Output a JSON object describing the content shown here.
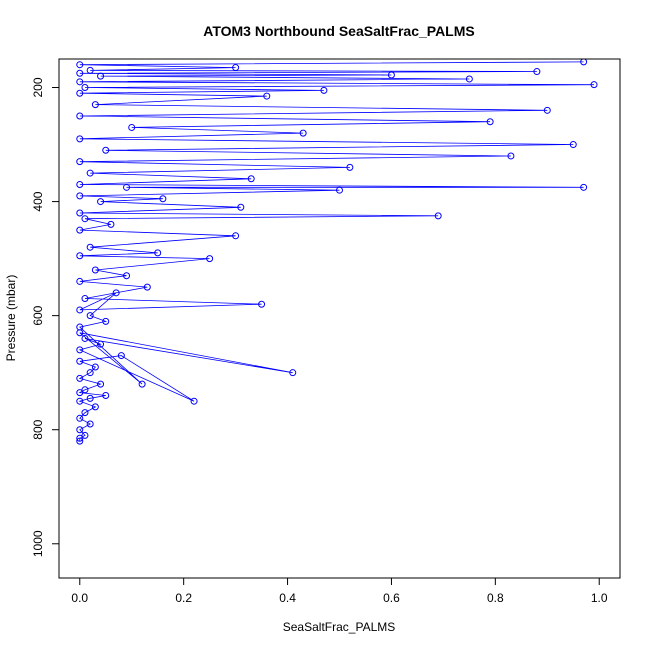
{
  "chart_data": {
    "type": "scatter",
    "title": "ATOM3 Northbound SeaSaltFrac_PALMS",
    "xlabel": "SeaSaltFrac_PALMS",
    "ylabel": "Pressure (mbar)",
    "xlim": [
      -0.04,
      1.04
    ],
    "ylim": [
      1060,
      150
    ],
    "y_reversed": true,
    "x_ticks": [
      0.0,
      0.2,
      0.4,
      0.6,
      0.8,
      1.0
    ],
    "x_tick_labels": [
      "0.0",
      "0.2",
      "0.4",
      "0.6",
      "0.8",
      "1.0"
    ],
    "y_ticks": [
      200,
      400,
      600,
      800,
      1000
    ],
    "y_tick_labels": [
      "200",
      "400",
      "600",
      "800",
      "1000"
    ],
    "grid": false,
    "legend": "none",
    "series_color": "#0000ff",
    "marker": "open-circle",
    "line": true,
    "series": [
      {
        "x": [
          0.0,
          0.0,
          0.01,
          0.0,
          0.02,
          0.0,
          0.01,
          0.03,
          0.0,
          0.02,
          0.05,
          0.0,
          0.01,
          0.04,
          0.0,
          0.02,
          0.03,
          0.0,
          0.08,
          0.22,
          0.0,
          0.04,
          0.01,
          0.41,
          0.0,
          0.12,
          0.0,
          0.05,
          0.02,
          0.07,
          0.0,
          0.35,
          0.01,
          0.13,
          0.0,
          0.09,
          0.03,
          0.25,
          0.0,
          0.15,
          0.02,
          0.3,
          0.0,
          0.06,
          0.01,
          0.69,
          0.0,
          0.31,
          0.04,
          0.16,
          0.0,
          0.5,
          0.09,
          0.97,
          0.0,
          0.33,
          0.02,
          0.52,
          0.0,
          0.83,
          0.05,
          0.95,
          0.0,
          0.43,
          0.1,
          0.79,
          0.0,
          0.9,
          0.03,
          0.36,
          0.0,
          0.47,
          0.01,
          0.99,
          0.0,
          0.75,
          0.04,
          0.6,
          0.0,
          0.88,
          0.02,
          0.3,
          0.0,
          0.97
        ],
        "y": [
          820,
          815,
          810,
          800,
          790,
          780,
          770,
          760,
          750,
          745,
          740,
          735,
          730,
          720,
          710,
          700,
          690,
          680,
          670,
          750,
          660,
          650,
          640,
          700,
          630,
          720,
          620,
          610,
          600,
          560,
          590,
          580,
          570,
          550,
          540,
          530,
          520,
          500,
          495,
          490,
          480,
          460,
          450,
          440,
          430,
          425,
          420,
          410,
          400,
          395,
          390,
          380,
          375,
          375,
          370,
          360,
          350,
          340,
          330,
          320,
          310,
          300,
          290,
          280,
          270,
          260,
          250,
          240,
          230,
          215,
          210,
          205,
          200,
          195,
          190,
          185,
          180,
          178,
          175,
          172,
          170,
          165,
          160,
          155
        ]
      }
    ]
  }
}
